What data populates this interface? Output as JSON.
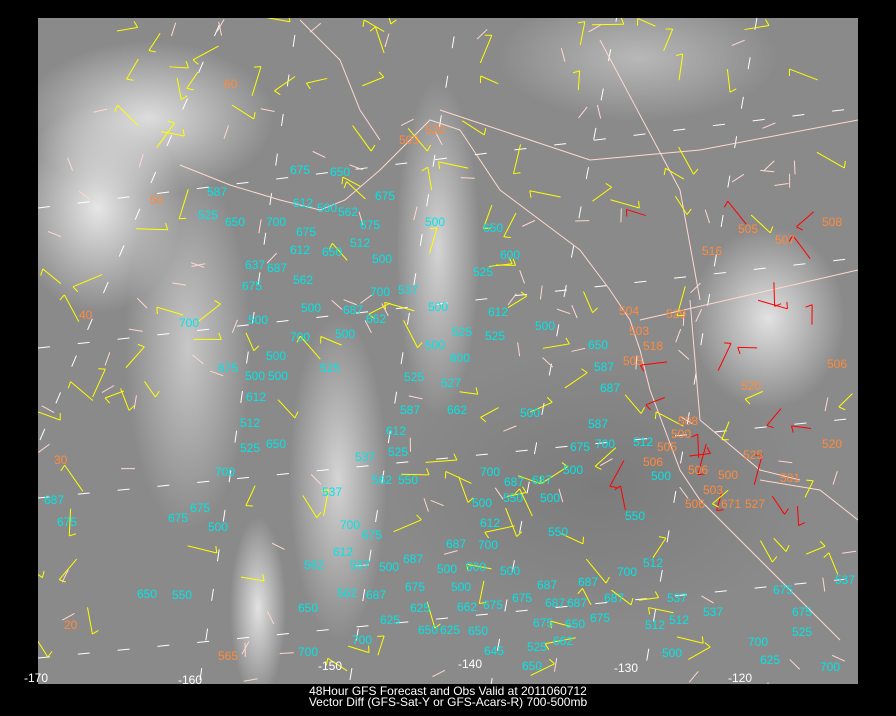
{
  "caption": {
    "line1": "48Hour GFS Forecast and Obs Valid at 2011060712",
    "line2": "Vector Diff (GFS-Sat-Y or GFS-Acars-R) 700-500mb"
  },
  "colors": {
    "sat_vector": "#ffff00",
    "acars_vector": "#ff0000",
    "sat_label": "#00e6e6",
    "acars_label": "#ff8a3d",
    "boundaries": "#ffd8d0",
    "gridlines": "#ffffff"
  },
  "longitude_labels": [
    "-170",
    "-160",
    "-150",
    "-140",
    "-130",
    "-120"
  ],
  "latitude_labels": [
    "60",
    "50",
    "40",
    "30",
    "20"
  ],
  "sat_pressure_labels": [
    "675",
    "650",
    "587",
    "675",
    "525",
    "650",
    "612",
    "500",
    "562",
    "700",
    "675",
    "500",
    "675",
    "612",
    "650",
    "512",
    "637",
    "687",
    "500",
    "675",
    "562",
    "650",
    "600",
    "525",
    "537",
    "700",
    "700",
    "500",
    "500",
    "687",
    "662",
    "700",
    "500",
    "500",
    "525",
    "525",
    "500",
    "612",
    "650",
    "500",
    "500",
    "675",
    "500",
    "500",
    "525",
    "600",
    "587",
    "612",
    "525",
    "527",
    "687",
    "662",
    "500",
    "587",
    "512",
    "650",
    "525",
    "587",
    "675",
    "700",
    "612",
    "512",
    "537",
    "525",
    "700",
    "562",
    "550",
    "700",
    "687",
    "687",
    "500",
    "500",
    "550",
    "500",
    "612",
    "687",
    "700",
    "550",
    "550",
    "500",
    "537",
    "675",
    "687",
    "675",
    "675",
    "500",
    "700",
    "675",
    "612",
    "562",
    "587",
    "500",
    "687",
    "500",
    "500",
    "500",
    "687",
    "687",
    "700",
    "512",
    "675",
    "500",
    "650",
    "550",
    "562",
    "687",
    "650",
    "625",
    "662",
    "675",
    "675",
    "687",
    "687",
    "687",
    "537",
    "675",
    "537",
    "625",
    "650",
    "625",
    "650",
    "675",
    "650",
    "675",
    "512",
    "512",
    "537",
    "675",
    "525",
    "700",
    "500",
    "700",
    "625",
    "700",
    "525",
    "662",
    "650",
    "700",
    "645"
  ],
  "acars_pressure_labels": [
    "503",
    "520",
    "505",
    "507",
    "508",
    "516",
    "504",
    "529",
    "503",
    "518",
    "505",
    "506",
    "520",
    "508",
    "500",
    "505",
    "506",
    "506",
    "500",
    "503",
    "506",
    "671",
    "527",
    "525",
    "520",
    "501",
    "565"
  ]
}
